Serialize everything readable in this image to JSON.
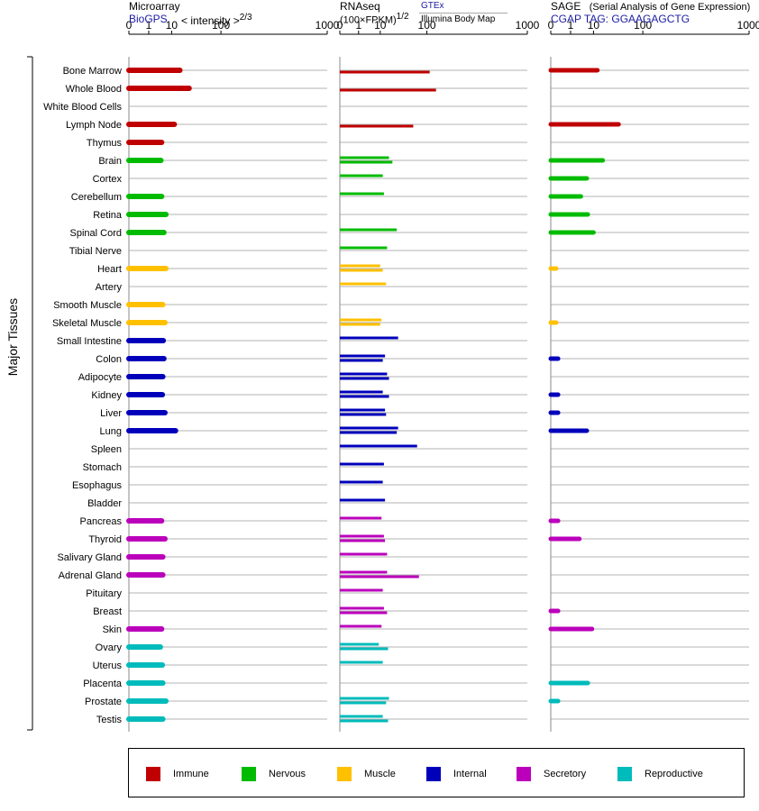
{
  "panels": {
    "microarray": {
      "title": "Microarray",
      "source": "BioGPS",
      "measure": "< intensity >",
      "measure_exp": "2/3"
    },
    "rnaseq": {
      "title": "RNAseq",
      "measure": "(100×FPKM)",
      "measure_exp": "1/2",
      "source_top": "GTEx",
      "source_bottom": "Illumina Body Map"
    },
    "sage": {
      "title": "SAGE",
      "title_note": "(Serial Analysis of Gene Expression)",
      "tag": "CGAP TAG: GGAAGAGCTG"
    }
  },
  "axis_ticks": [
    "0",
    "1",
    "10",
    "100",
    "1000"
  ],
  "ylabel": "Major Tissues",
  "colors": {
    "Immune": "#c00000",
    "Nervous": "#00bb00",
    "Muscle": "#ffc000",
    "Internal": "#0000bb",
    "Secretory": "#bb00bb",
    "Reproductive": "#00bbbb"
  },
  "legend": [
    {
      "label": "Immune",
      "group": "Immune"
    },
    {
      "label": "Nervous",
      "group": "Nervous"
    },
    {
      "label": "Muscle",
      "group": "Muscle"
    },
    {
      "label": "Internal",
      "group": "Internal"
    },
    {
      "label": "Secretory",
      "group": "Secretory"
    },
    {
      "label": "Reproductive",
      "group": "Reproductive"
    }
  ],
  "chart_data": {
    "type": "bar",
    "orientation": "horizontal",
    "x_scale": "cube-root",
    "xlim": [
      0,
      1000
    ],
    "categories": [
      "Bone Marrow",
      "Whole Blood",
      "White Blood Cells",
      "Lymph Node",
      "Thymus",
      "Brain",
      "Cortex",
      "Cerebellum",
      "Retina",
      "Spinal Cord",
      "Tibial Nerve",
      "Heart",
      "Artery",
      "Smooth Muscle",
      "Skeletal Muscle",
      "Small Intestine",
      "Colon",
      "Adipocyte",
      "Kidney",
      "Liver",
      "Lung",
      "Spleen",
      "Stomach",
      "Esophagus",
      "Bladder",
      "Pancreas",
      "Thyroid",
      "Salivary Gland",
      "Adrenal Gland",
      "Pituitary",
      "Breast",
      "Skin",
      "Ovary",
      "Uterus",
      "Placenta",
      "Prostate",
      "Testis"
    ],
    "groups": [
      "Immune",
      "Immune",
      "Immune",
      "Immune",
      "Immune",
      "Nervous",
      "Nervous",
      "Nervous",
      "Nervous",
      "Nervous",
      "Nervous",
      "Muscle",
      "Muscle",
      "Muscle",
      "Muscle",
      "Internal",
      "Internal",
      "Internal",
      "Internal",
      "Internal",
      "Internal",
      "Internal",
      "Internal",
      "Internal",
      "Internal",
      "Secretory",
      "Secretory",
      "Secretory",
      "Secretory",
      "Secretory",
      "Secretory",
      "Secretory",
      "Reproductive",
      "Reproductive",
      "Reproductive",
      "Reproductive",
      "Reproductive"
    ],
    "series": [
      {
        "name": "Microarray",
        "values": [
          17,
          28,
          null,
          12,
          4.5,
          4.2,
          null,
          4.5,
          6.5,
          5.5,
          null,
          6.5,
          null,
          5,
          6,
          5.2,
          5.5,
          5,
          4.8,
          6,
          13,
          null,
          null,
          null,
          null,
          4.5,
          6,
          5,
          5,
          null,
          null,
          4.5,
          4,
          4.8,
          5,
          6.5,
          5
        ]
      },
      {
        "name": "GTEx",
        "values": [
          null,
          null,
          null,
          null,
          null,
          18,
          null,
          null,
          null,
          null,
          null,
          null,
          null,
          null,
          null,
          null,
          null,
          null,
          null,
          null,
          null,
          null,
          null,
          null,
          null,
          null,
          null,
          null,
          null,
          null,
          null,
          null,
          null,
          null,
          null,
          null,
          null
        ]
      },
      {
        "name": "RNAseq",
        "values": [
          [
            null,
            110
          ],
          [
            null,
            135
          ],
          [
            null,
            null
          ],
          [
            null,
            60
          ],
          [
            null,
            null
          ],
          [
            18,
            22
          ],
          [
            12,
            null
          ],
          [
            13,
            null
          ],
          [
            null,
            null
          ],
          [
            28,
            null
          ],
          [
            16,
            null
          ],
          [
            10,
            12
          ],
          [
            15,
            null
          ],
          [
            null,
            null
          ],
          [
            11,
            10
          ],
          [
            30,
            null
          ],
          [
            14,
            12
          ],
          [
            16,
            18
          ],
          [
            12,
            18
          ],
          [
            14,
            15
          ],
          [
            30,
            28
          ],
          [
            70,
            null
          ],
          [
            13,
            null
          ],
          [
            12,
            null
          ],
          [
            14,
            null
          ],
          [
            11,
            null
          ],
          [
            13,
            14
          ],
          [
            16,
            null
          ],
          [
            16,
            75
          ],
          [
            12,
            null
          ],
          [
            13,
            16
          ],
          [
            11,
            null
          ],
          [
            9,
            17
          ],
          [
            12,
            null
          ],
          [
            null,
            null
          ],
          [
            18,
            15
          ],
          [
            12,
            17
          ]
        ]
      },
      {
        "name": "SAGE",
        "values": [
          13,
          null,
          null,
          40,
          null,
          18,
          6,
          3.5,
          6.5,
          10,
          null,
          0.02,
          null,
          null,
          0.02,
          null,
          0.05,
          null,
          0.05,
          0.05,
          6,
          null,
          null,
          null,
          null,
          0.05,
          3,
          null,
          null,
          null,
          0.05,
          9,
          null,
          null,
          6.5,
          0.05,
          null
        ]
      }
    ]
  }
}
